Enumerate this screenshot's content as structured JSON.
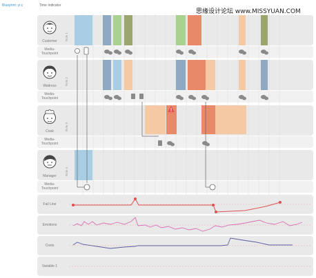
{
  "header": {
    "blueprint_label": "Blueprint: yr.c",
    "time_indicator_label": "Time Indicator",
    "watermark": "思缘设计论坛  www.MISSYUAN.COM"
  },
  "lanes": {
    "customer": "Customer",
    "waitress": "Waitress",
    "cook": "Cook",
    "manager": "Manager",
    "touchpoint": "Media-\nTouchpoint"
  },
  "roles": {
    "role1": "Role 1",
    "role2": "Role 2",
    "role3": "Role 3",
    "role4": "Role 4"
  },
  "metrics": {
    "fail_line": "Fail Line",
    "emotions": "Emotions",
    "costs": "Costs",
    "variable1": "Variable 1"
  },
  "colors": {
    "blue": "#a9cde3",
    "slate": "#8fa9c3",
    "green": "#a9d28f",
    "olive": "#9aa66e",
    "orange": "#e8896a",
    "peach": "#f4c9a3",
    "red": "#e05050",
    "pink": "#d96fb3",
    "navy": "#5a5aa0"
  },
  "chart_data": [
    {
      "type": "line",
      "name": "Fail Line",
      "x": [
        0,
        88,
        90,
        201,
        205,
        276,
        298
      ],
      "values": [
        0.55,
        0.55,
        1,
        0.55,
        0.55,
        -0.1,
        0.2
      ],
      "note": ""
    },
    {
      "type": "line",
      "name": "Emotions",
      "x": [],
      "values": []
    },
    {
      "type": "line",
      "name": "Costs",
      "x": [],
      "values": []
    }
  ]
}
